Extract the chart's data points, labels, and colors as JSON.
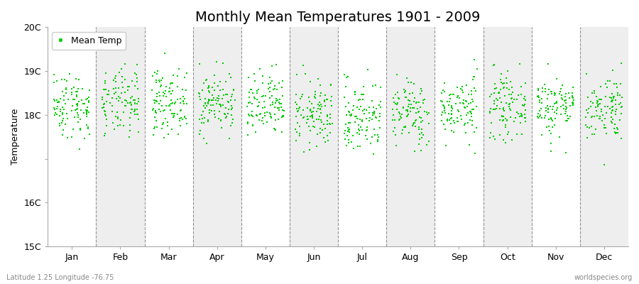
{
  "title": "Monthly Mean Temperatures 1901 - 2009",
  "ylabel": "Temperature",
  "xlabel": "",
  "ylim": [
    15,
    20
  ],
  "months": [
    "Jan",
    "Feb",
    "Mar",
    "Apr",
    "May",
    "Jun",
    "Jul",
    "Aug",
    "Sep",
    "Oct",
    "Nov",
    "Dec"
  ],
  "dot_color": "#00cc00",
  "background_color": "#ffffff",
  "alt_band_color": "#eeeeee",
  "legend_label": "Mean Temp",
  "bottom_left_text": "Latitude 1.25 Longitude -76.75",
  "bottom_right_text": "worldspecies.org",
  "title_fontsize": 14,
  "axis_label_fontsize": 9,
  "tick_fontsize": 9,
  "n_years": 109,
  "seed": 42,
  "month_means": [
    18.22,
    18.25,
    18.3,
    18.28,
    18.18,
    18.0,
    17.95,
    18.05,
    18.15,
    18.2,
    18.2,
    18.18
  ],
  "month_stds": [
    0.38,
    0.38,
    0.36,
    0.35,
    0.38,
    0.38,
    0.42,
    0.38,
    0.35,
    0.35,
    0.35,
    0.38
  ],
  "ytick_positions": [
    15,
    16,
    17,
    18,
    19,
    20
  ],
  "ytick_labels": [
    "15C",
    "16C",
    "",
    "18C",
    "19C",
    "20C"
  ]
}
